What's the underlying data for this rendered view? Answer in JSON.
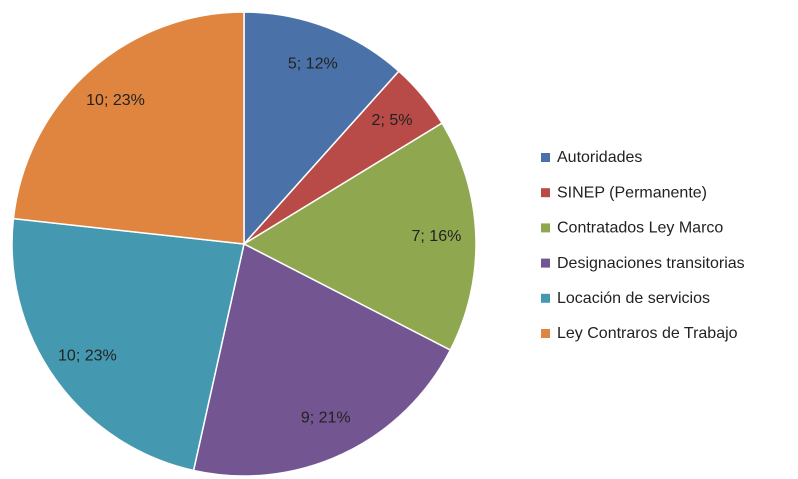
{
  "chart_data": {
    "type": "pie",
    "categories": [
      "Autoridades",
      "SINEP (Permanente)",
      "Contratados Ley Marco",
      "Designaciones transitorias",
      "Locación de servicios",
      "Ley Contraros de Trabajo"
    ],
    "values": [
      5,
      2,
      7,
      9,
      10,
      10
    ],
    "value_labels": [
      "5; 12%",
      "2; 5%",
      "7; 16%",
      "9; 21%",
      "10; 23%",
      "10; 23%"
    ],
    "colors": [
      "#4a72a8",
      "#b84a47",
      "#8fa84f",
      "#735591",
      "#4499b0",
      "#e0853f"
    ],
    "legend": "right"
  }
}
